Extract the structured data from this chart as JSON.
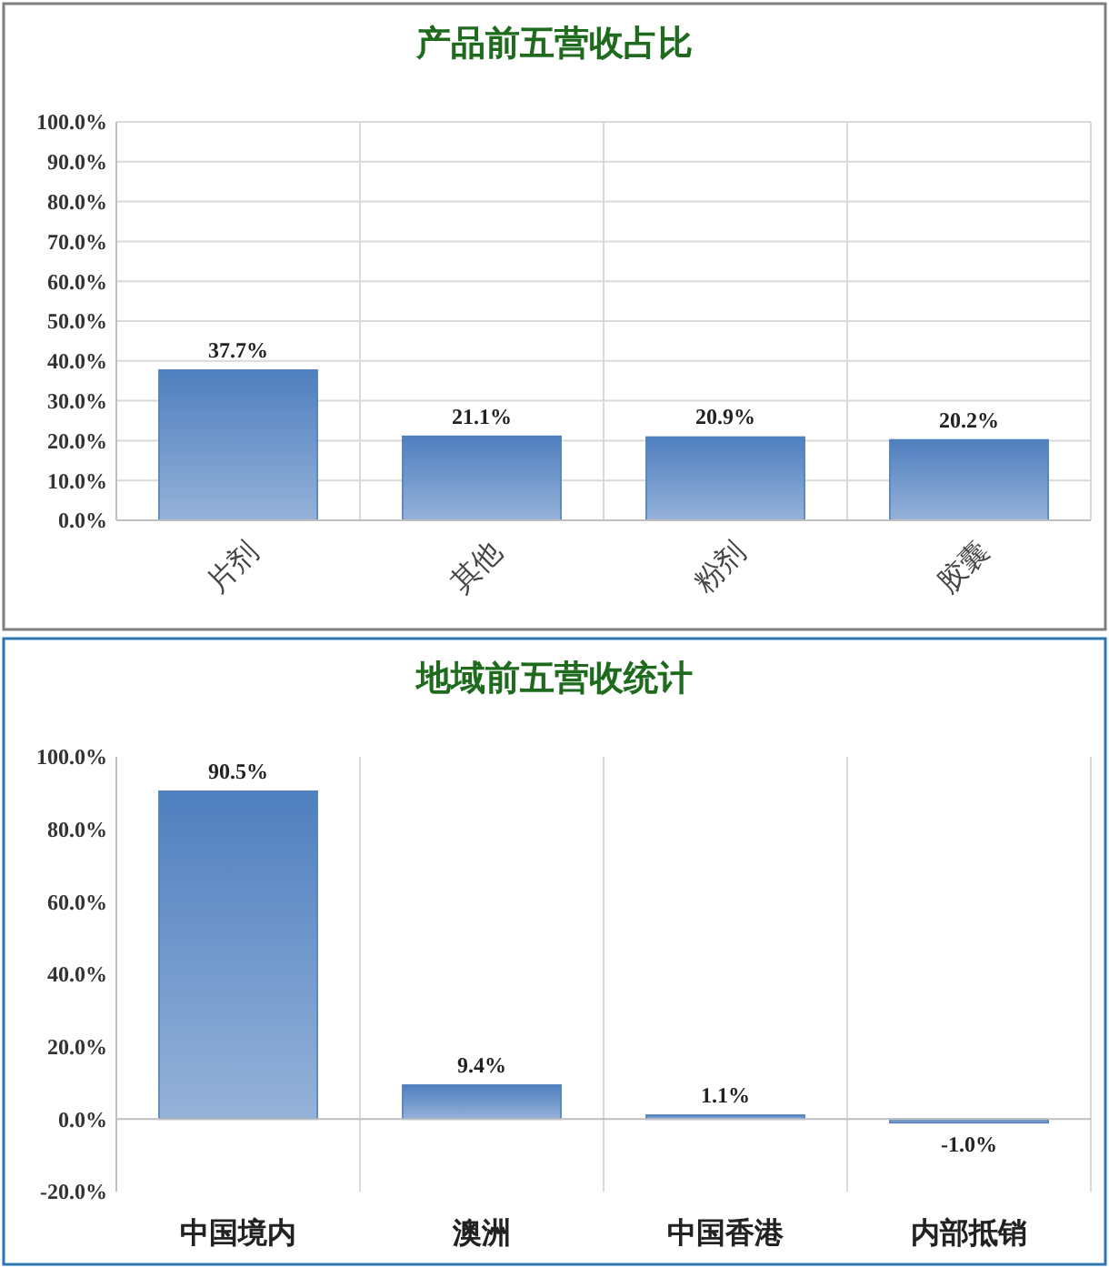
{
  "chart_data": [
    {
      "type": "bar",
      "title": "产品前五营收占比",
      "categories": [
        "片剂",
        "其他",
        "粉剂",
        "胶囊"
      ],
      "values": [
        37.7,
        21.1,
        20.9,
        20.2
      ],
      "value_labels": [
        "37.7%",
        "21.1%",
        "20.9%",
        "20.2%"
      ],
      "color": "#4f7fbf",
      "ylim": [
        0,
        100
      ],
      "yticks": [
        {
          "value": 0,
          "label": "0.0%"
        },
        {
          "value": 10,
          "label": "10.0%"
        },
        {
          "value": 20,
          "label": "20.0%"
        },
        {
          "value": 30,
          "label": "30.0%"
        },
        {
          "value": 40,
          "label": "40.0%"
        },
        {
          "value": 50,
          "label": "50.0%"
        },
        {
          "value": 60,
          "label": "60.0%"
        },
        {
          "value": 70,
          "label": "70.0%"
        },
        {
          "value": 80,
          "label": "80.0%"
        },
        {
          "value": 90,
          "label": "90.0%"
        },
        {
          "value": 100,
          "label": "100.0%"
        }
      ],
      "grid": true
    },
    {
      "type": "bar",
      "title": "地域前五营收统计",
      "categories": [
        "中国境内",
        "澳洲",
        "中国香港",
        "内部抵销"
      ],
      "values": [
        90.5,
        9.4,
        1.1,
        -1.0
      ],
      "value_labels": [
        "90.5%",
        "9.4%",
        "1.1%",
        "-1.0%"
      ],
      "color": "#4f7fbf",
      "ylim": [
        -20,
        100
      ],
      "yticks": [
        {
          "value": -20,
          "label": "-20.0%"
        },
        {
          "value": 0,
          "label": "0.0%"
        },
        {
          "value": 20,
          "label": "20.0%"
        },
        {
          "value": 40,
          "label": "40.0%"
        },
        {
          "value": 60,
          "label": "60.0%"
        },
        {
          "value": 80,
          "label": "80.0%"
        },
        {
          "value": 100,
          "label": "100.0%"
        }
      ],
      "grid": "x"
    }
  ]
}
